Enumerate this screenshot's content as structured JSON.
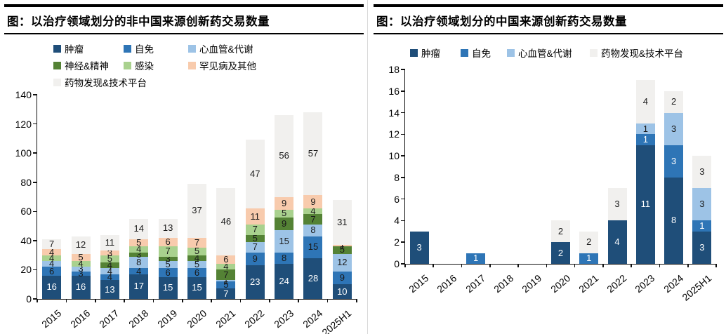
{
  "panels": [
    {
      "title": "图：以治疗领域划分的非中国来源创新药交易数量",
      "chart_data": {
        "type": "bar",
        "stacked": true,
        "grid": false,
        "legend_position": "top",
        "categories": [
          "2015",
          "2016",
          "2017",
          "2018",
          "2019",
          "2020",
          "2021",
          "2022",
          "2023",
          "2024",
          "2025H1"
        ],
        "series": [
          {
            "name": "肿瘤",
            "color": "#1F4E79",
            "label_white": true,
            "values": [
              16,
              16,
              13,
              17,
              15,
              15,
              7,
              23,
              24,
              28,
              10
            ]
          },
          {
            "name": "自免",
            "color": "#2E75B6",
            "label_white": false,
            "values": [
              6,
              3,
              4,
              4,
              6,
              6,
              5,
              9,
              8,
              15,
              9
            ]
          },
          {
            "name": "心血管&代谢",
            "color": "#9DC3E6",
            "label_white": false,
            "values": [
              4,
              3,
              4,
              8,
              5,
              5,
              1,
              7,
              15,
              8,
              12
            ]
          },
          {
            "name": "神经&精神",
            "color": "#548235",
            "label_white": false,
            "values": [
              0,
              0,
              4,
              3,
              3,
              4,
              7,
              5,
              9,
              7,
              5
            ]
          },
          {
            "name": "感染",
            "color": "#A9D18E",
            "label_white": false,
            "values": [
              4,
              4,
              5,
              4,
              7,
              5,
              4,
              7,
              5,
              4,
              0
            ]
          },
          {
            "name": "罕见病及其他",
            "color": "#F8CBAD",
            "label_white": false,
            "values": [
              4,
              5,
              3,
              5,
              6,
              7,
              6,
              11,
              9,
              9,
              1
            ]
          },
          {
            "name": "药物发现&技术平台",
            "color": "#F1F0EE",
            "label_white": false,
            "values": [
              7,
              12,
              11,
              14,
              13,
              37,
              46,
              47,
              56,
              57,
              31
            ]
          }
        ],
        "totals": [
          41,
          43,
          44,
          55,
          55,
          79,
          76,
          109,
          126,
          128,
          68
        ],
        "ylim": [
          0,
          140
        ],
        "ytick_step": 20,
        "yticks": [
          "0",
          "20",
          "40",
          "60",
          "80",
          "100",
          "120",
          "140"
        ],
        "xlabel": "",
        "ylabel": ""
      }
    },
    {
      "title": "图：以治疗领域划分的中国来源创新药交易数量",
      "chart_data": {
        "type": "bar",
        "stacked": true,
        "grid": false,
        "legend_position": "top",
        "categories": [
          "2015",
          "2016",
          "2017",
          "2018",
          "2019",
          "2020",
          "2021",
          "2022",
          "2023",
          "2024",
          "2025H1"
        ],
        "series": [
          {
            "name": "肿瘤",
            "color": "#1F4E79",
            "label_white": true,
            "values": [
              3,
              0,
              0,
              0,
              0,
              2,
              0,
              4,
              11,
              8,
              3
            ]
          },
          {
            "name": "自免",
            "color": "#2E75B6",
            "label_white": true,
            "values": [
              0,
              0,
              1,
              0,
              0,
              0,
              1,
              0,
              1,
              3,
              1
            ]
          },
          {
            "name": "心血管&代谢",
            "color": "#9DC3E6",
            "label_white": false,
            "values": [
              0,
              0,
              0,
              0,
              0,
              0,
              0,
              0,
              1,
              3,
              3
            ]
          },
          {
            "name": "药物发现&技术平台",
            "color": "#F1F0EE",
            "label_white": false,
            "values": [
              0,
              0,
              0,
              0,
              0,
              2,
              2,
              3,
              4,
              2,
              3
            ]
          }
        ],
        "totals": [
          3,
          0,
          1,
          0,
          0,
          4,
          3,
          7,
          17,
          16,
          10
        ],
        "ylim": [
          0,
          18
        ],
        "ytick_step": 2,
        "yticks": [
          "0",
          "2",
          "4",
          "6",
          "8",
          "10",
          "12",
          "14",
          "16",
          "18"
        ],
        "xlabel": "",
        "ylabel": ""
      }
    }
  ]
}
